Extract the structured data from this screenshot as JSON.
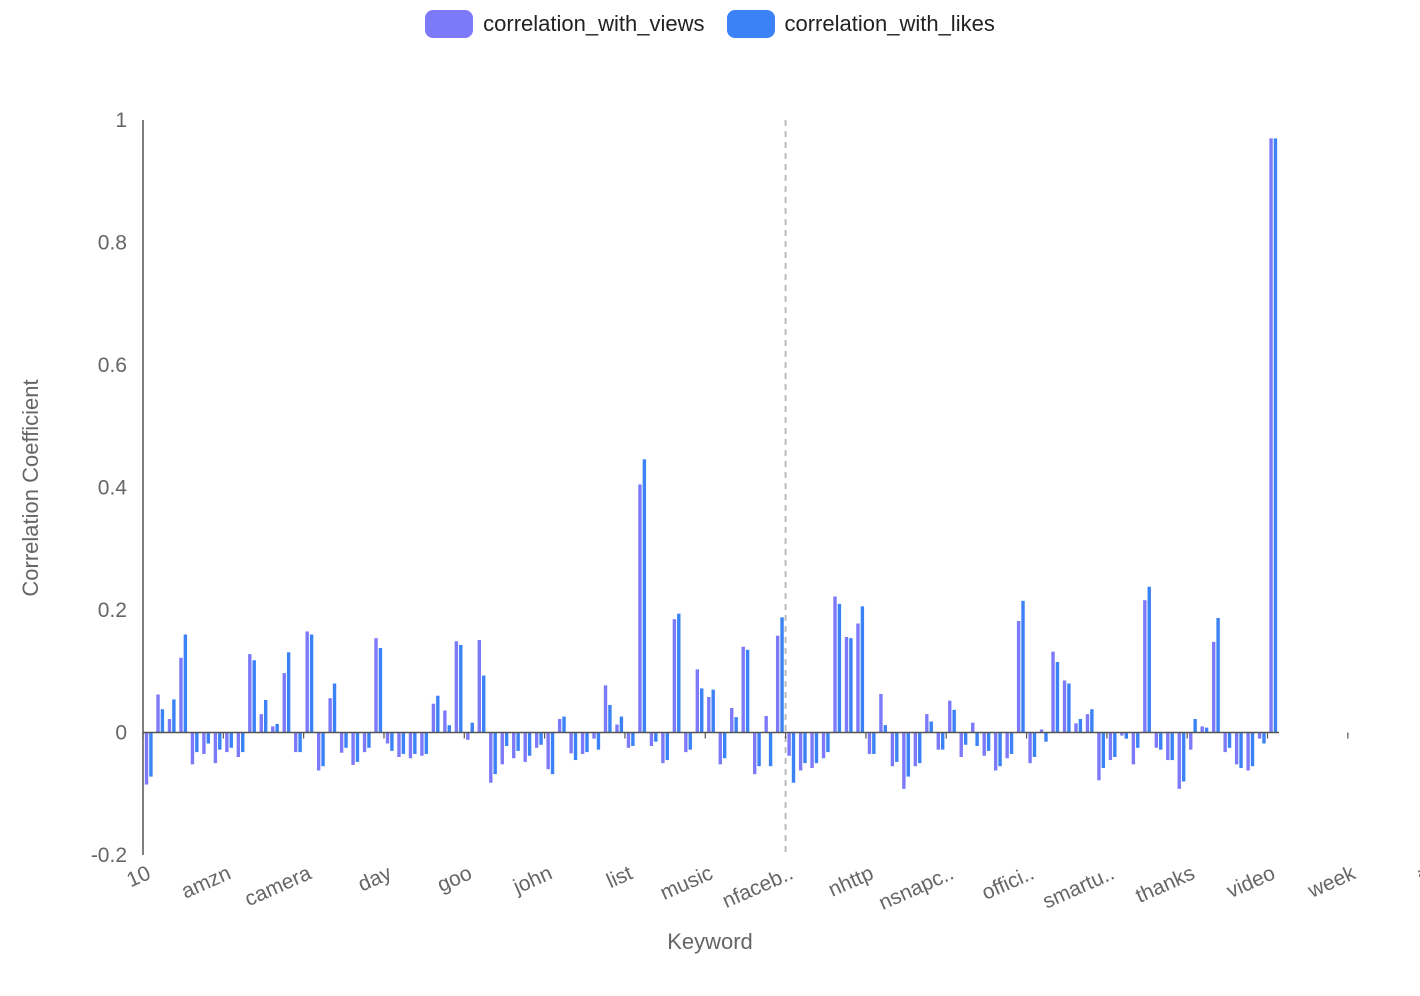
{
  "chart_data": {
    "type": "bar",
    "xlabel": "Keyword",
    "ylabel": "Correlation Coefficient",
    "ylim": [
      -0.2,
      1
    ],
    "yticks": [
      "-0.2",
      "0",
      "0.2",
      "0.4",
      "0.6",
      "0.8",
      "1"
    ],
    "ytick_values": [
      -0.2,
      0,
      0.2,
      0.4,
      0.6,
      0.8,
      1
    ],
    "xtick_labels": [
      "10",
      "amzn",
      "camera",
      "day",
      "goo",
      "john",
      "list",
      "music",
      "nfaceb..",
      "nhttp",
      "nsnapc..",
      "offici..",
      "smartu..",
      "thanks",
      "video",
      "week",
      "äî"
    ],
    "xtick_label_indices": [
      0,
      7,
      14,
      21,
      28,
      35,
      42,
      49,
      56,
      63,
      70,
      77,
      84,
      91,
      98,
      105,
      112
    ],
    "reference_line_category_index": 56,
    "grid": false,
    "legend_position": "top-center",
    "series": [
      {
        "name": "correlation_with_views",
        "color": "#7d7afa",
        "values": [
          -0.085,
          0.062,
          0.022,
          0.122,
          -0.052,
          -0.035,
          -0.05,
          -0.032,
          -0.04,
          0.128,
          0.03,
          0.01,
          0.097,
          -0.032,
          0.165,
          -0.062,
          0.056,
          -0.033,
          -0.053,
          -0.032,
          0.154,
          -0.018,
          -0.04,
          -0.042,
          -0.038,
          0.047,
          0.036,
          0.149,
          -0.012,
          0.151,
          -0.082,
          -0.052,
          -0.042,
          -0.048,
          -0.025,
          -0.06,
          0.022,
          -0.034,
          -0.035,
          -0.01,
          0.077,
          0.013,
          -0.025,
          0.405,
          -0.022,
          -0.05,
          0.185,
          -0.032,
          0.103,
          0.058,
          -0.052,
          0.04,
          0.14,
          -0.068,
          0.027,
          0.158,
          -0.038,
          -0.062,
          -0.058,
          -0.042,
          0.222,
          0.156,
          0.178,
          -0.035,
          0.063,
          -0.055,
          -0.092,
          -0.055,
          0.03,
          -0.028,
          0.052,
          -0.04,
          0.016,
          -0.038,
          -0.062,
          -0.042,
          0.182,
          -0.05,
          0.005,
          0.132,
          0.085,
          0.015,
          0.03,
          -0.078,
          -0.045,
          -0.005,
          -0.052,
          0.216,
          -0.025,
          -0.045,
          -0.092,
          -0.028,
          0.01,
          0.148,
          -0.032,
          -0.052,
          -0.062,
          -0.01,
          0.97
        ]
      },
      {
        "name": "correlation_with_likes",
        "color": "#3b82f6",
        "values": [
          -0.072,
          0.038,
          0.054,
          0.16,
          -0.032,
          -0.018,
          -0.028,
          -0.025,
          -0.032,
          0.118,
          0.053,
          0.014,
          0.131,
          -0.032,
          0.16,
          -0.055,
          0.08,
          -0.025,
          -0.048,
          -0.025,
          0.138,
          -0.03,
          -0.035,
          -0.035,
          -0.035,
          0.06,
          0.012,
          0.143,
          0.016,
          0.093,
          -0.068,
          -0.022,
          -0.03,
          -0.038,
          -0.02,
          -0.068,
          0.026,
          -0.045,
          -0.032,
          -0.028,
          0.045,
          0.026,
          -0.022,
          0.446,
          -0.015,
          -0.045,
          0.194,
          -0.028,
          0.072,
          0.07,
          -0.042,
          0.025,
          0.135,
          -0.055,
          -0.055,
          0.188,
          -0.082,
          -0.05,
          -0.05,
          -0.032,
          0.21,
          0.154,
          0.206,
          -0.035,
          0.012,
          -0.048,
          -0.072,
          -0.05,
          0.018,
          -0.028,
          0.037,
          -0.02,
          -0.022,
          -0.03,
          -0.055,
          -0.035,
          0.215,
          -0.04,
          -0.015,
          0.115,
          0.08,
          0.022,
          0.038,
          -0.058,
          -0.04,
          -0.01,
          -0.025,
          0.238,
          -0.028,
          -0.045,
          -0.08,
          0.022,
          0.008,
          0.187,
          -0.025,
          -0.058,
          -0.055,
          -0.018,
          0.97
        ]
      }
    ]
  }
}
